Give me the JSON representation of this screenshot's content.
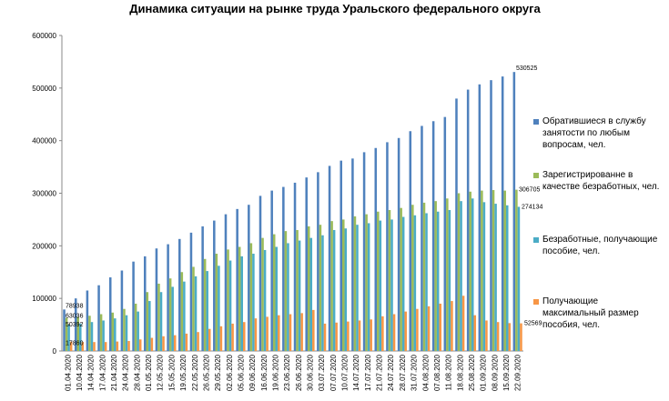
{
  "chart_data": {
    "type": "bar",
    "title": "Динамика ситуации на рынке труда Уральского федерального округа",
    "categories": [
      "01.04.2020",
      "10.04.2020",
      "14.04.2020",
      "17.04.2020",
      "21.04.2020",
      "24.04.2020",
      "28.04.2020",
      "01.05.2020",
      "12.05.2020",
      "15.05.2020",
      "19.05.2020",
      "22.05.2020",
      "26.05.2020",
      "29.05.2020",
      "02.06.2020",
      "05.06.2020",
      "09.06.2020",
      "16.06.2020",
      "19.06.2020",
      "23.06.2020",
      "26.06.2020",
      "30.06.2020",
      "03.07.2020",
      "07.07.2020",
      "10.07.2020",
      "14.07.2020",
      "17.07.2020",
      "21.07.2020",
      "24.07.2020",
      "28.07.2020",
      "31.07.2020",
      "04.08.2020",
      "07.08.2020",
      "11.08.2020",
      "18.08.2020",
      "25.08.2020",
      "01.09.2020",
      "08.09.2020",
      "15.09.2020",
      "22.09.2020"
    ],
    "series": [
      {
        "name": "Обратившиеся в службу занятости по любым вопросам, чел.",
        "color": "#4f81bd",
        "values": [
          78938,
          100000,
          115000,
          125000,
          140000,
          153000,
          170000,
          180000,
          195000,
          203000,
          213000,
          225000,
          237000,
          248000,
          260000,
          270000,
          278000,
          295000,
          305000,
          312000,
          320000,
          330000,
          340000,
          352000,
          362000,
          366000,
          378000,
          386000,
          397000,
          405000,
          418000,
          428000,
          437000,
          445000,
          480000,
          497000,
          507000,
          515000,
          522000,
          530525
        ]
      },
      {
        "name": "Зарегистрированне в качестве безработных, чел.",
        "color": "#9bbb59",
        "values": [
          63036,
          65000,
          67000,
          70000,
          73000,
          80000,
          90000,
          112000,
          128000,
          138000,
          150000,
          160000,
          175000,
          185000,
          193000,
          198000,
          205000,
          215000,
          222000,
          228000,
          230000,
          237000,
          240000,
          247000,
          250000,
          256000,
          260000,
          265000,
          268000,
          272000,
          278000,
          282000,
          285000,
          290000,
          300000,
          303000,
          305000,
          306000,
          305000,
          306705
        ]
      },
      {
        "name": "Безработные, получающие пособие, чел.",
        "color": "#4bacc6",
        "values": [
          50392,
          52000,
          55000,
          58000,
          62000,
          68000,
          75000,
          95000,
          112000,
          122000,
          132000,
          142000,
          152000,
          162000,
          172000,
          180000,
          185000,
          192000,
          198000,
          205000,
          210000,
          215000,
          220000,
          230000,
          233000,
          240000,
          243000,
          248000,
          250000,
          255000,
          258000,
          262000,
          265000,
          268000,
          285000,
          290000,
          283000,
          280000,
          277000,
          274134
        ]
      },
      {
        "name": "Получающие максимальный размер пособия, чел.",
        "color": "#f79646",
        "values": [
          17860,
          17000,
          17000,
          17000,
          18000,
          19000,
          22000,
          25000,
          28000,
          30000,
          33000,
          36000,
          42000,
          47000,
          52000,
          55000,
          62000,
          65000,
          68000,
          70000,
          72000,
          78000,
          52000,
          54000,
          56000,
          58000,
          60000,
          66000,
          70000,
          75000,
          80000,
          85000,
          90000,
          95000,
          105000,
          68000,
          58000,
          55000,
          53000,
          52569
        ]
      }
    ],
    "ylim": [
      0,
      600000
    ],
    "yticks": [
      0,
      100000,
      200000,
      300000,
      400000,
      500000,
      600000
    ],
    "grid": false,
    "legend": "right"
  }
}
